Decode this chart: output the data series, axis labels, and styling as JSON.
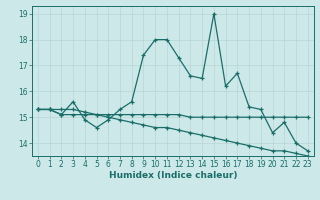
{
  "xlabel": "Humidex (Indice chaleur)",
  "ylabel": "",
  "xlim": [
    -0.5,
    23.5
  ],
  "ylim": [
    13.5,
    19.3
  ],
  "yticks": [
    14,
    15,
    16,
    17,
    18,
    19
  ],
  "xticks": [
    0,
    1,
    2,
    3,
    4,
    5,
    6,
    7,
    8,
    9,
    10,
    11,
    12,
    13,
    14,
    15,
    16,
    17,
    18,
    19,
    20,
    21,
    22,
    23
  ],
  "bg_color": "#cde8e8",
  "grid_color": "#b8d4d4",
  "line_color": "#1a6e6a",
  "lines": [
    [
      15.3,
      15.3,
      15.1,
      15.6,
      14.9,
      14.6,
      14.9,
      15.3,
      15.6,
      17.4,
      18.0,
      18.0,
      17.3,
      16.6,
      16.5,
      19.0,
      16.2,
      16.7,
      15.4,
      15.3,
      14.4,
      14.8,
      14.0,
      13.7
    ],
    [
      15.3,
      15.3,
      15.1,
      15.1,
      15.1,
      15.1,
      15.1,
      15.1,
      15.1,
      15.1,
      15.1,
      15.1,
      15.1,
      15.0,
      15.0,
      15.0,
      15.0,
      15.0,
      15.0,
      15.0,
      15.0,
      15.0,
      15.0,
      15.0
    ],
    [
      15.3,
      15.3,
      15.3,
      15.3,
      15.2,
      15.1,
      15.0,
      14.9,
      14.8,
      14.7,
      14.6,
      14.6,
      14.5,
      14.4,
      14.3,
      14.2,
      14.1,
      14.0,
      13.9,
      13.8,
      13.7,
      13.7,
      13.6,
      13.5
    ]
  ],
  "tick_fontsize": 5.5,
  "xlabel_fontsize": 6.5,
  "ylabel_fontsize": 5.5,
  "linewidth": 0.9,
  "markersize": 3.5,
  "markeredgewidth": 0.9
}
